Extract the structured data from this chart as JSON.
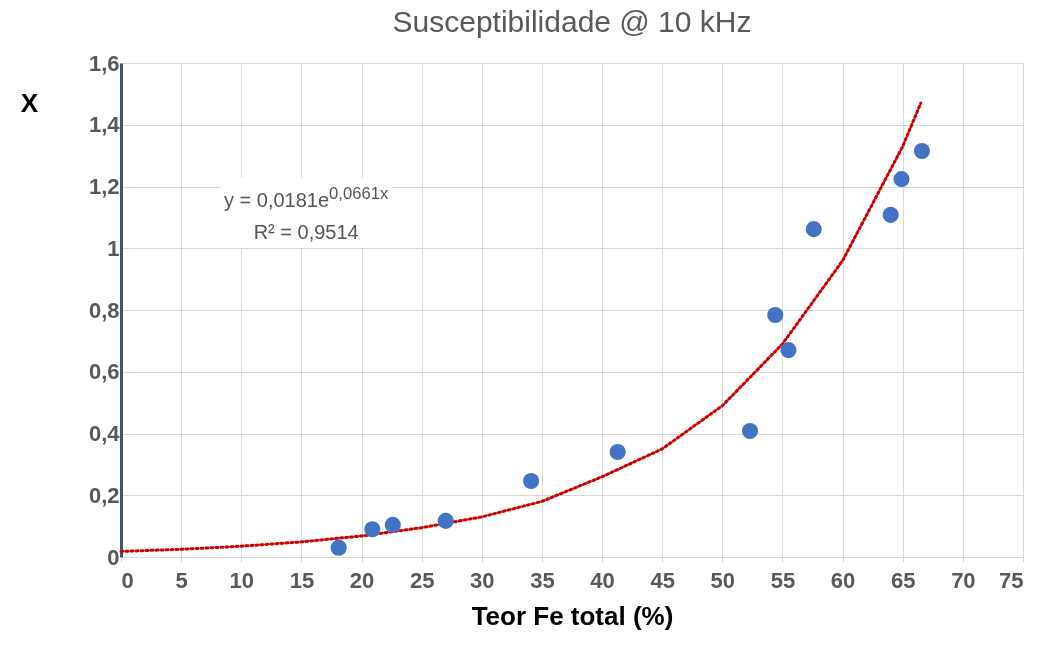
{
  "chart_data": {
    "type": "scatter",
    "title": "Susceptibilidade @ 10 kHz",
    "xlabel": "Teor Fe total (%)",
    "ylabel": "X",
    "xlim": [
      0,
      75
    ],
    "xticks": [
      0,
      5,
      10,
      15,
      20,
      25,
      30,
      35,
      40,
      45,
      50,
      55,
      60,
      65,
      70,
      75
    ],
    "ylim": [
      0,
      1.6
    ],
    "yticks": [
      0,
      {
        "value": 0.2,
        "label": "0,2"
      },
      {
        "value": 0.4,
        "label": "0,4"
      },
      {
        "value": 0.6,
        "label": "0,6"
      },
      {
        "value": 0.8,
        "label": "0,8"
      },
      1,
      {
        "value": 1.2,
        "label": "1,2"
      },
      {
        "value": 1.4,
        "label": "1,4"
      },
      {
        "value": 1.6,
        "label": "1,6"
      }
    ],
    "grid": true,
    "marker": "circle",
    "annotations": [
      "y = 0,0181e$^{0,0661x}$",
      "R² = 0,9514"
    ],
    "series": [
      {
        "color": "#4472c4",
        "x": [
          18.1,
          20.9,
          22.6,
          27.0,
          34.1,
          41.3,
          52.3,
          54.4,
          55.5,
          57.6,
          64.0,
          64.9,
          66.6
        ],
        "values": [
          0.03,
          0.09,
          0.104,
          0.117,
          0.246,
          0.34,
          0.408,
          0.784,
          0.67,
          1.062,
          1.108,
          1.224,
          1.315
        ]
      },
      {
        "type": "line",
        "color": "#cc0000",
        "line_style": "dotted",
        "marker": "none",
        "x": [
          0,
          5,
          10,
          15,
          20,
          25,
          30,
          35,
          40,
          45,
          50,
          55,
          60,
          65,
          66.5
        ],
        "values": [
          0.018,
          0.025,
          0.035,
          0.049,
          0.068,
          0.095,
          0.13,
          0.18,
          0.26,
          0.35,
          0.49,
          0.69,
          0.96,
          1.33,
          1.47
        ]
      }
    ]
  }
}
